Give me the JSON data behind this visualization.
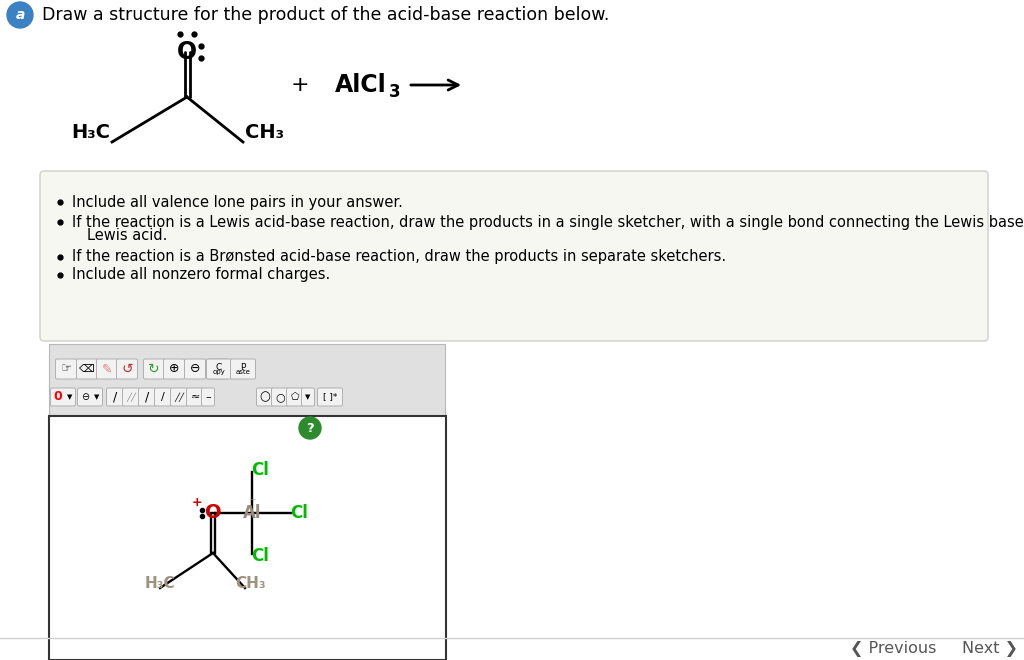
{
  "title": "Draw a structure for the product of the acid-base reaction below.",
  "badge_color": "#3b82c4",
  "page_bg": "#ffffff",
  "outer_bg": "#e8e8e8",
  "box_bg": "#f7f7f2",
  "box_border": "#d0d0c8",
  "bullet_lines": [
    "Include all valence lone pairs in your answer.",
    "If the reaction is a Lewis acid-base reaction, draw the products in a single sketcher, with a single bond connecting the Lewis base and",
    "Lewis acid.",
    "If the reaction is a Brønsted acid-base reaction, draw the products in separate sketchers.",
    "Include all nonzero formal charges."
  ],
  "bullet_has_dot": [
    true,
    true,
    false,
    true,
    true
  ],
  "toolbar_bg": "#e0e0e0",
  "toolbar_border": "#b8b8b8",
  "sketcher_bg": "#ffffff",
  "sketcher_border": "#333333",
  "green_circle": "#2d8a2d",
  "nav_color": "#555555",
  "bottom_bar": "#d0d0d0"
}
